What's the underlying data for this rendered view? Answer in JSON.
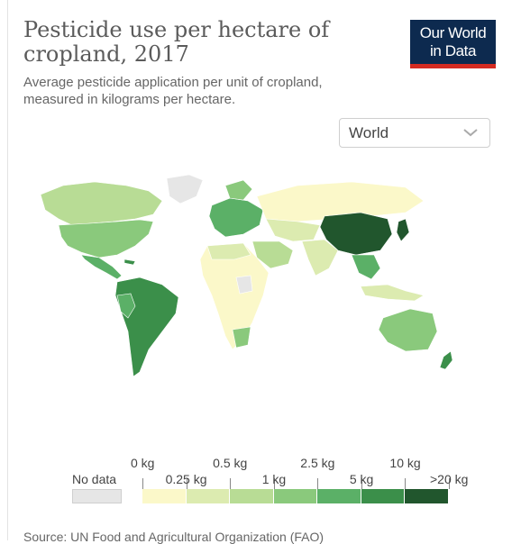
{
  "header": {
    "title": "Pesticide use per hectare of cropland, 2017",
    "subtitle": "Average pesticide application per unit of cropland, measured in kilograms per hectare."
  },
  "logo": {
    "line1": "Our World",
    "line2": "in Data"
  },
  "region_select": {
    "value": "World"
  },
  "legend": {
    "no_data_label": "No data",
    "top_labels": [
      "0 kg",
      "0.5 kg",
      "2.5 kg",
      "10 kg"
    ],
    "bottom_labels": [
      "0.25 kg",
      "1 kg",
      "5 kg",
      ">20 kg"
    ],
    "colors": [
      "#fbf8c9",
      "#dcebb0",
      "#b8dc95",
      "#8ac97c",
      "#5bb067",
      "#3b8f4a",
      "#21562d"
    ],
    "no_data_color": "#e6e6e6"
  },
  "source": {
    "text": "Source: UN Food and Agricultural Organization (FAO)"
  },
  "map_data": {
    "North America": "1 kg – 2.5 kg",
    "Greenland": "No data",
    "Central America": "2.5 kg – 5 kg",
    "South America": "5 kg – 10 kg",
    "Europe": "2.5 kg – 5 kg",
    "Russia": "0 kg – 0.25 kg",
    "Africa": "0 kg – 0.5 kg",
    "Middle East": "0.5 kg – 1 kg",
    "India": "0.25 kg – 0.5 kg",
    "China": "10 kg – 20 kg",
    "Japan": ">20 kg",
    "Southeast Asia": "2.5 kg – 5 kg",
    "Australia": "1 kg – 2.5 kg",
    "New Zealand": "5 kg – 10 kg"
  }
}
